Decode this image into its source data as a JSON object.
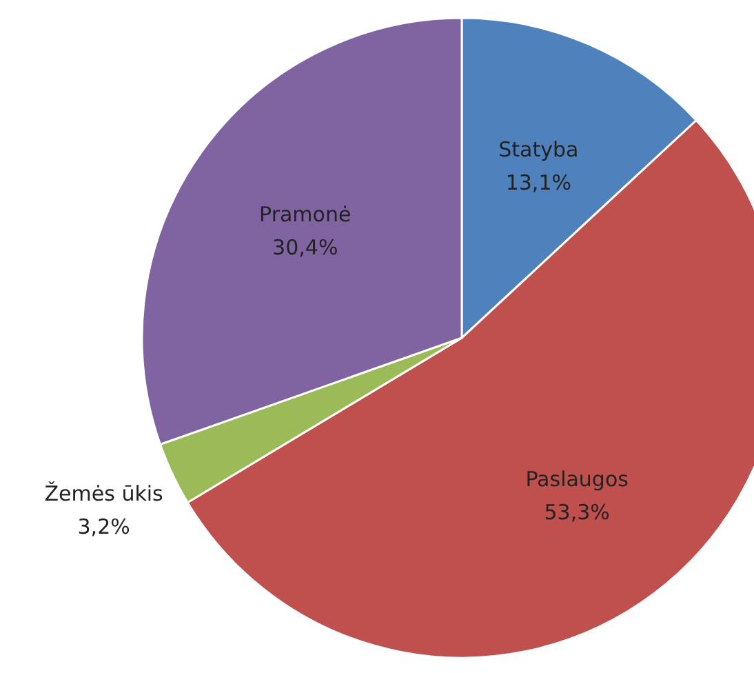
{
  "chart_data": {
    "type": "pie",
    "categories": [
      "Statyba",
      "Paslaugos",
      "Žemės ūkis",
      "Pramonė"
    ],
    "values": [
      13.1,
      53.3,
      3.2,
      30.4
    ],
    "colors": [
      "#4f81bd",
      "#c0504d",
      "#9bbb59",
      "#8064a2"
    ],
    "value_labels": [
      "13,1%",
      "53,3%",
      "3,2%",
      "30,4%"
    ],
    "legend": false
  }
}
